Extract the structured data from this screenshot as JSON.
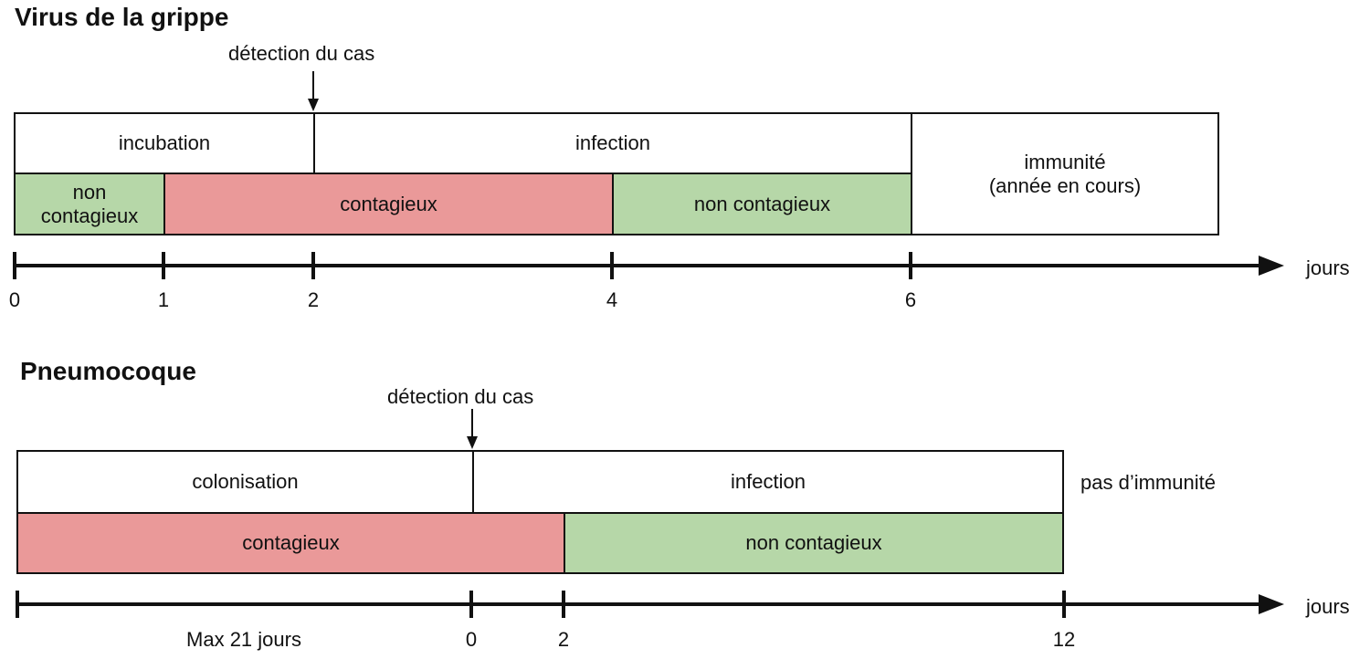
{
  "flu": {
    "title": "Virus de la grippe",
    "detection": "détection du cas",
    "incubation": "incubation",
    "infection": "infection",
    "immunity_line1": "immunité",
    "immunity_line2": "(année en cours)",
    "non_contagious_short_1": "non",
    "non_contagious_short_2": "contagieux",
    "contagious": "contagieux",
    "non_contagious": "non contagieux",
    "axis_unit": "jours",
    "ticks": [
      "0",
      "1",
      "2",
      "4",
      "6"
    ]
  },
  "pneumo": {
    "title": "Pneumocoque",
    "detection": "détection du cas",
    "colonisation": "colonisation",
    "infection": "infection",
    "no_immunity": "pas d’immunité",
    "contagious": "contagieux",
    "non_contagious": "non contagieux",
    "axis_unit": "jours",
    "max_label": "Max 21 jours",
    "ticks": [
      "0",
      "2",
      "12"
    ]
  },
  "colors": {
    "contagious": "#ea9999",
    "non_contagious": "#b6d7a8"
  }
}
